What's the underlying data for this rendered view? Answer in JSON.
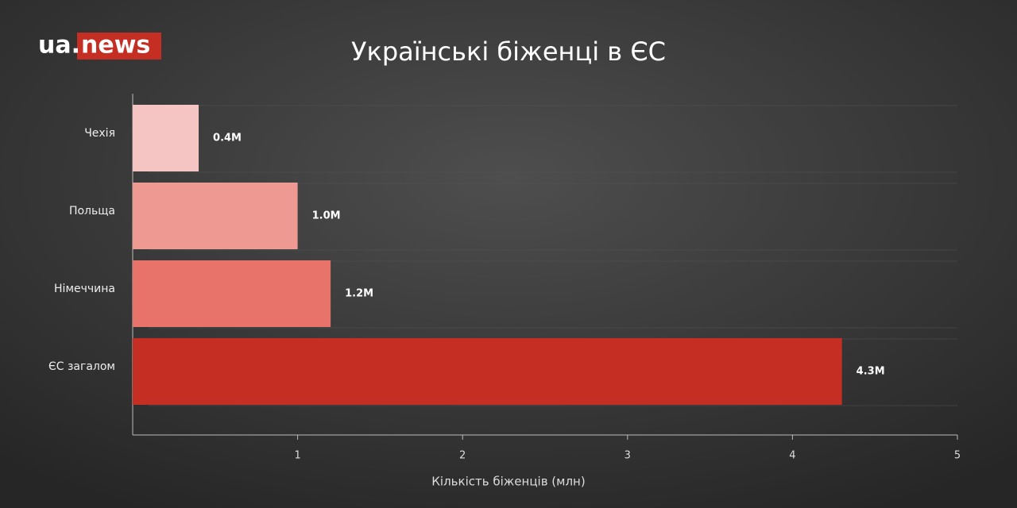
{
  "logo": {
    "prefix": "ua.",
    "name": "news"
  },
  "chart_data": {
    "type": "hbar",
    "title": "Українські біженці в ЄС",
    "x_label": "Кількість біженців (млн)",
    "categories": [
      "Чехія",
      "Польща",
      "Німеччина",
      "ЄС загалом"
    ],
    "values": [
      0.4,
      1.0,
      1.2,
      4.3
    ],
    "value_labels": [
      "0.4M",
      "1.0M",
      "1.2M",
      "4.3M"
    ],
    "colors": [
      "#f4c5c3",
      "#ee9a92",
      "#e7736a",
      "#c52e22"
    ],
    "xlim": [
      0,
      5
    ],
    "xticks": [
      1,
      2,
      3,
      4,
      5
    ]
  }
}
